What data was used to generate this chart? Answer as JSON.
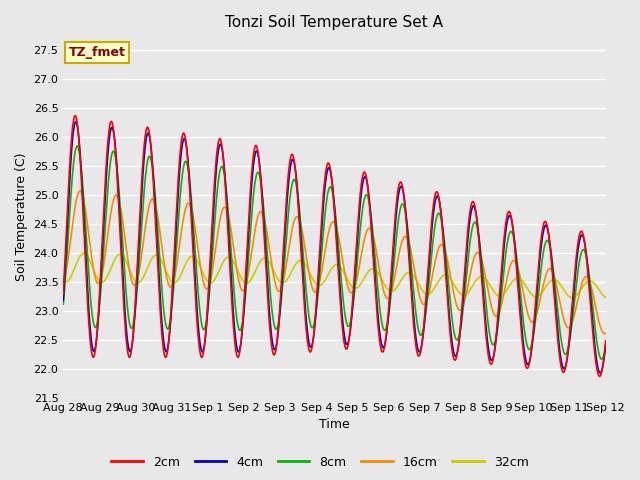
{
  "title": "Tonzi Soil Temperature Set A",
  "xlabel": "Time",
  "ylabel": "Soil Temperature (C)",
  "ylim": [
    21.5,
    27.75
  ],
  "annotation_text": "TZ_fmet",
  "annotation_bg": "#ffffcc",
  "annotation_border": "#ccaa00",
  "plot_bg": "#e8e8e8",
  "fig_bg": "#e8e8e8",
  "legend_entries": [
    "2cm",
    "4cm",
    "8cm",
    "16cm",
    "32cm"
  ],
  "line_colors": [
    "#ff0000",
    "#0000cc",
    "#00bb00",
    "#ff8800",
    "#cccc00"
  ],
  "tick_labels": [
    "Aug 28",
    "Aug 29",
    "Aug 30",
    "Aug 31",
    "Sep 1",
    "Sep 2",
    "Sep 3",
    "Sep 4",
    "Sep 5",
    "Sep 6",
    "Sep 7",
    "Sep 8",
    "Sep 9",
    "Sep 10",
    "Sep 11",
    "Sep 12"
  ]
}
